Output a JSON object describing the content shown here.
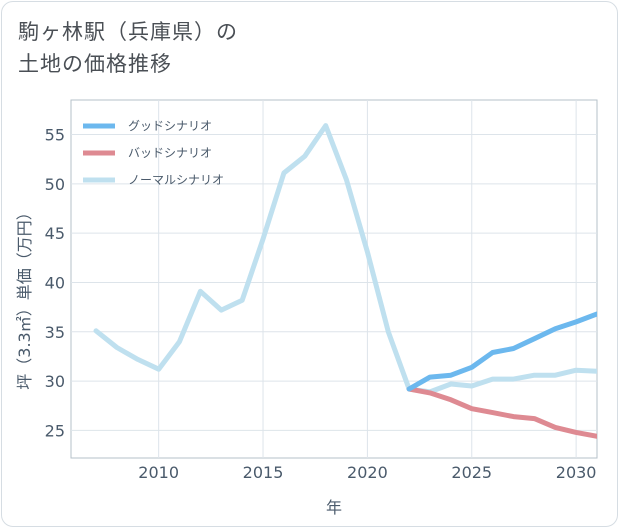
{
  "title": {
    "line1": "駒ヶ林駅（兵庫県）の",
    "line2": "土地の価格推移"
  },
  "chart_data": {
    "type": "line",
    "xlabel": "年",
    "ylabel": "坪（3.3㎡）単価（万円）",
    "xlim": [
      2005.8,
      2031
    ],
    "ylim": [
      22.2,
      58.5
    ],
    "x_ticks": [
      2010,
      2015,
      2020,
      2025,
      2030
    ],
    "y_ticks": [
      25,
      30,
      35,
      40,
      45,
      50,
      55
    ],
    "legend": [
      {
        "name": "グッドシナリオ",
        "color": "#6cb8ee"
      },
      {
        "name": "バッドシナリオ",
        "color": "#de8a92"
      },
      {
        "name": "ノーマルシナリオ",
        "color": "#bfe0ef"
      }
    ],
    "series": [
      {
        "name": "ノーマルシナリオ",
        "color": "#bfe0ef",
        "x": [
          2007,
          2008,
          2009,
          2010,
          2011,
          2012,
          2013,
          2014,
          2015,
          2016,
          2017,
          2018,
          2019,
          2020,
          2021,
          2022,
          2023,
          2024,
          2025,
          2026,
          2027,
          2028,
          2029,
          2030,
          2031
        ],
        "y": [
          35.1,
          33.4,
          32.2,
          31.2,
          34.0,
          39.1,
          37.2,
          38.2,
          44.4,
          51.1,
          52.8,
          55.9,
          50.4,
          43.1,
          35.0,
          29.2,
          28.9,
          29.7,
          29.5,
          30.2,
          30.2,
          30.6,
          30.6,
          31.1,
          31.0
        ]
      },
      {
        "name": "バッドシナリオ",
        "color": "#de8a92",
        "x": [
          2022,
          2023,
          2024,
          2025,
          2026,
          2027,
          2028,
          2029,
          2030,
          2031
        ],
        "y": [
          29.2,
          28.8,
          28.1,
          27.2,
          26.8,
          26.4,
          26.2,
          25.3,
          24.8,
          24.4
        ]
      },
      {
        "name": "グッドシナリオ",
        "color": "#6cb8ee",
        "x": [
          2022,
          2023,
          2024,
          2025,
          2026,
          2027,
          2028,
          2029,
          2030,
          2031
        ],
        "y": [
          29.2,
          30.4,
          30.6,
          31.4,
          32.9,
          33.3,
          34.3,
          35.3,
          36.0,
          36.8
        ]
      }
    ]
  }
}
